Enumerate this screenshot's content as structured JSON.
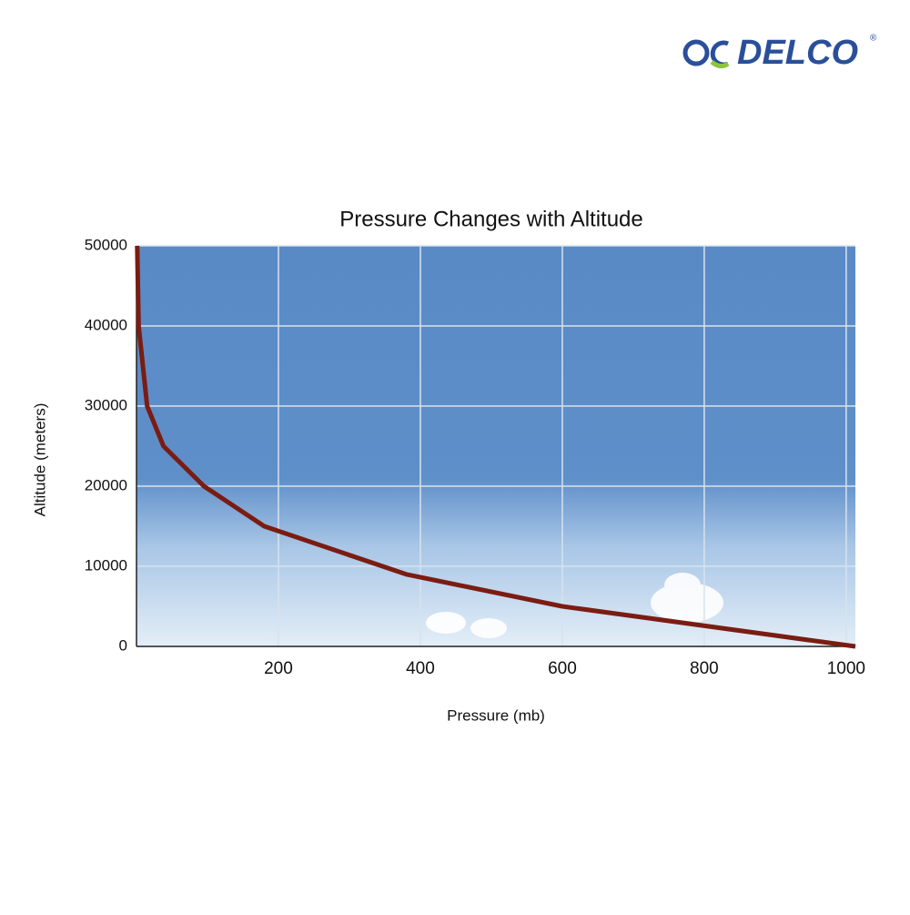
{
  "logo": "DELCO",
  "logo_mark": "®",
  "chart_data": {
    "type": "line",
    "title": "Pressure Changes with Altitude",
    "x_label": "Pressure (mb)",
    "y_label": "Altitude (meters)",
    "series": [
      {
        "name": "Altitude",
        "color": "#7b1c12",
        "x": [
          1,
          3,
          15,
          38,
          95,
          180,
          380,
          600,
          1013
        ],
        "values": [
          50000,
          40000,
          30000,
          25000,
          20000,
          15000,
          9000,
          5000,
          0
        ]
      }
    ],
    "xlim": [
      0,
      1013
    ],
    "xticks": [
      200,
      400,
      600,
      800,
      1000
    ],
    "ylim": [
      0,
      50000
    ],
    "yticks": [
      0,
      10000,
      20000,
      30000,
      40000,
      50000
    ],
    "grid": true
  }
}
